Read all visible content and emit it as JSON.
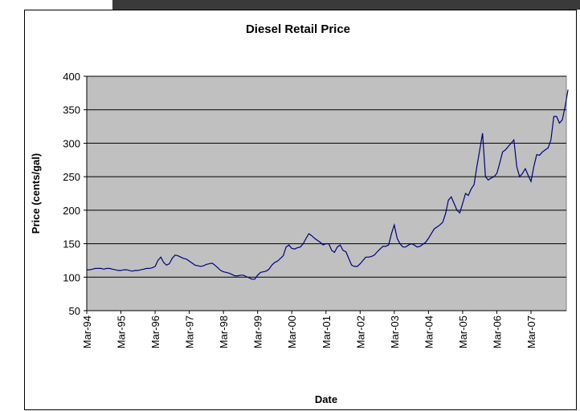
{
  "chart_data": {
    "type": "line",
    "title": "Diesel Retail Price",
    "x_label": "Date",
    "y_label": "Price (cents/gal)",
    "categories": [
      "Mar-94",
      null,
      null,
      null,
      null,
      null,
      null,
      null,
      null,
      null,
      null,
      null,
      "Mar-95",
      null,
      null,
      null,
      null,
      null,
      null,
      null,
      null,
      null,
      null,
      null,
      "Mar-96",
      null,
      null,
      null,
      null,
      null,
      null,
      null,
      null,
      null,
      null,
      null,
      "Mar-97",
      null,
      null,
      null,
      null,
      null,
      null,
      null,
      null,
      null,
      null,
      null,
      "Mar-98",
      null,
      null,
      null,
      null,
      null,
      null,
      null,
      null,
      null,
      null,
      null,
      "Mar-99",
      null,
      null,
      null,
      null,
      null,
      null,
      null,
      null,
      null,
      null,
      null,
      "Mar-00",
      null,
      null,
      null,
      null,
      null,
      null,
      null,
      null,
      null,
      null,
      null,
      "Mar-01",
      null,
      null,
      null,
      null,
      null,
      null,
      null,
      null,
      null,
      null,
      null,
      "Mar-02",
      null,
      null,
      null,
      null,
      null,
      null,
      null,
      null,
      null,
      null,
      null,
      "Mar-03",
      null,
      null,
      null,
      null,
      null,
      null,
      null,
      null,
      null,
      null,
      null,
      "Mar-04",
      null,
      null,
      null,
      null,
      null,
      null,
      null,
      null,
      null,
      null,
      null,
      "Mar-05",
      null,
      null,
      null,
      null,
      null,
      null,
      null,
      null,
      null,
      null,
      null,
      "Mar-06",
      null,
      null,
      null,
      null,
      null,
      null,
      null,
      null,
      null,
      null,
      null,
      "Mar-07",
      null,
      null,
      null,
      null,
      null,
      null,
      null,
      null,
      null,
      null,
      null,
      null,
      null
    ],
    "values": [
      111,
      111,
      112,
      113,
      113,
      113,
      112,
      113,
      113,
      112,
      111,
      110,
      110,
      111,
      111,
      110,
      109,
      110,
      110,
      111,
      112,
      113,
      113,
      114,
      116,
      125,
      130,
      122,
      118,
      120,
      128,
      133,
      132,
      130,
      128,
      127,
      124,
      121,
      118,
      117,
      116,
      117,
      119,
      120,
      121,
      118,
      114,
      110,
      108,
      107,
      106,
      104,
      102,
      102,
      103,
      103,
      101,
      99,
      97,
      97,
      103,
      107,
      108,
      109,
      112,
      118,
      122,
      124,
      128,
      132,
      145,
      148,
      143,
      142,
      144,
      145,
      150,
      158,
      165,
      162,
      158,
      155,
      152,
      148,
      150,
      150,
      140,
      137,
      145,
      148,
      140,
      138,
      128,
      118,
      116,
      116,
      120,
      125,
      130,
      130,
      131,
      133,
      138,
      142,
      146,
      146,
      148,
      165,
      178,
      158,
      150,
      145,
      145,
      148,
      150,
      148,
      145,
      146,
      149,
      152,
      158,
      165,
      172,
      175,
      178,
      182,
      195,
      215,
      220,
      210,
      200,
      196,
      210,
      225,
      222,
      232,
      238,
      265,
      290,
      315,
      250,
      245,
      248,
      250,
      255,
      270,
      287,
      290,
      295,
      300,
      305,
      265,
      250,
      255,
      262,
      252,
      243,
      265,
      283,
      282,
      287,
      290,
      293,
      305,
      340,
      340,
      330,
      335,
      355,
      380
    ],
    "color": "#000080",
    "plot_background": "#c0c0c0",
    "ylim": [
      50,
      400
    ],
    "yticks": [
      50,
      100,
      150,
      200,
      250,
      300,
      350,
      400
    ],
    "grid": true
  }
}
